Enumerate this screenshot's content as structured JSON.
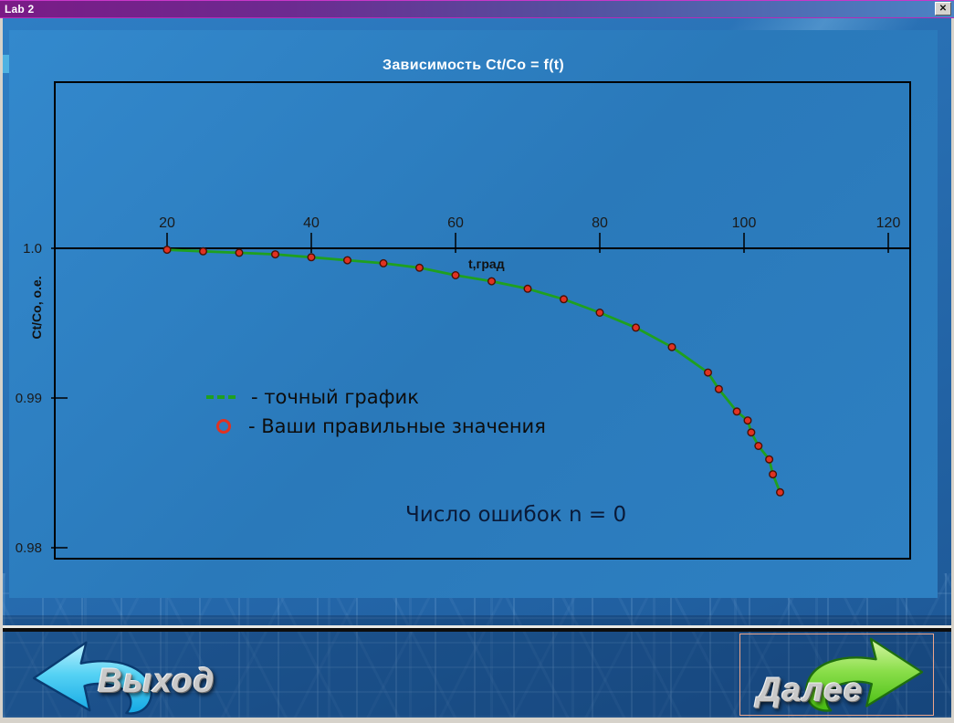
{
  "window": {
    "title": "Lab 2",
    "close_glyph": "✕"
  },
  "chart_data": {
    "type": "line",
    "title": "Зависимость Ct/Co = f(t)",
    "xlabel": "t,град",
    "ylabel": "Ct/Co, o.e.",
    "x_ticks": [
      20,
      40,
      60,
      80,
      100,
      120
    ],
    "y_ticks": [
      {
        "label": "1.0",
        "value": 1.0
      },
      {
        "label": "0.99",
        "value": 0.99
      },
      {
        "label": "0.98",
        "value": 0.98
      }
    ],
    "xlim": [
      4,
      123
    ],
    "ylim": [
      0.979,
      1.011
    ],
    "grid": false,
    "legend_position": "inside-middle-left",
    "x_axis_at_y": 1.0,
    "series": [
      {
        "name": "точный график",
        "type": "line",
        "color": "#1fa01f"
      },
      {
        "name": "Ваши правильные значения",
        "type": "scatter",
        "color": "#e03222",
        "marker_outline": "#4a1005"
      }
    ],
    "points": [
      [
        20,
        0.9999
      ],
      [
        25,
        0.9998
      ],
      [
        30,
        0.9997
      ],
      [
        35,
        0.9996
      ],
      [
        40,
        0.9994
      ],
      [
        45,
        0.9992
      ],
      [
        50,
        0.999
      ],
      [
        55,
        0.9987
      ],
      [
        60,
        0.9982
      ],
      [
        65,
        0.9978
      ],
      [
        70,
        0.9973
      ],
      [
        75,
        0.9966
      ],
      [
        80,
        0.9957
      ],
      [
        85,
        0.9947
      ],
      [
        90,
        0.9934
      ],
      [
        95,
        0.9917
      ],
      [
        96.5,
        0.9906
      ],
      [
        99,
        0.9891
      ],
      [
        100.5,
        0.9885
      ],
      [
        101,
        0.9877
      ],
      [
        102,
        0.9868
      ],
      [
        103.5,
        0.9859
      ],
      [
        104,
        0.9849
      ],
      [
        105,
        0.9837
      ]
    ]
  },
  "legend": {
    "items": [
      {
        "marker": "green-dashed-line",
        "label": "- точный график"
      },
      {
        "marker": "red-circle",
        "label": "- Ваши правильные значения"
      }
    ]
  },
  "status": {
    "text": "Число ошибок n = 0"
  },
  "footer": {
    "exit_label": "Выход",
    "next_label": "Далее"
  },
  "colors": {
    "titlebar_left": "#7a1b86",
    "titlebar_right": "#4b83c4",
    "panel_blue": "#2b7abc",
    "curve_green": "#1fa01f",
    "marker_red": "#e03222",
    "arrow_cyan": "#2cc0ec",
    "arrow_green": "#55c61a",
    "focus_border": "#eda58a"
  }
}
